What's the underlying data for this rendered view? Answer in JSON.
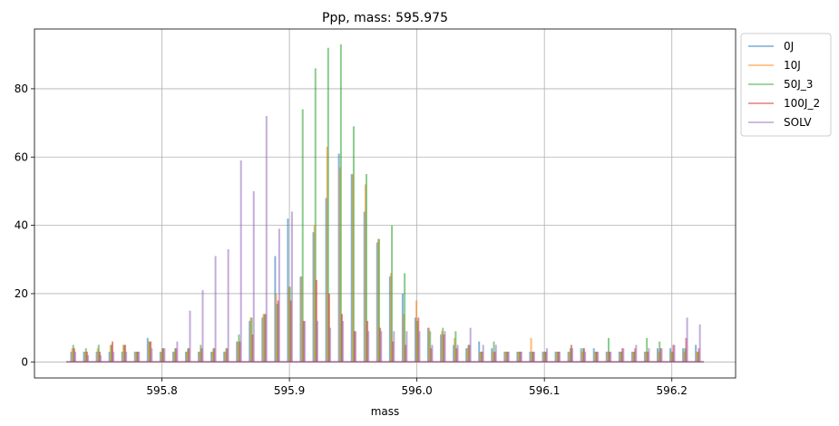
{
  "chart_data": {
    "type": "line",
    "title": "Ppp, mass: 595.975",
    "xlabel": "mass",
    "ylabel": "",
    "xlim": [
      595.7,
      596.25
    ],
    "ylim": [
      -4.7,
      97.5
    ],
    "xticks": [
      595.8,
      595.9,
      596.0,
      596.1,
      596.2
    ],
    "xtick_labels": [
      "595.8",
      "595.9",
      "596.0",
      "596.1",
      "596.2"
    ],
    "yticks": [
      0,
      20,
      40,
      60,
      80
    ],
    "ytick_labels": [
      "0",
      "20",
      "40",
      "60",
      "80"
    ],
    "grid": true,
    "legend_position": "outside-top-right",
    "baseline_range": [
      595.725,
      596.225
    ],
    "peak_positions": [
      595.73,
      595.74,
      595.75,
      595.76,
      595.77,
      595.78,
      595.79,
      595.8,
      595.81,
      595.82,
      595.83,
      595.84,
      595.85,
      595.86,
      595.87,
      595.88,
      595.89,
      595.9,
      595.91,
      595.92,
      595.93,
      595.94,
      595.95,
      595.96,
      595.97,
      595.98,
      595.99,
      596.0,
      596.01,
      596.02,
      596.03,
      596.04,
      596.05,
      596.06,
      596.07,
      596.08,
      596.09,
      596.1,
      596.11,
      596.12,
      596.13,
      596.14,
      596.15,
      596.16,
      596.17,
      596.18,
      596.19,
      596.2,
      596.21,
      596.22
    ],
    "series": [
      {
        "name": "0J",
        "color": "#1f77b4",
        "offset": -0.0012,
        "values": [
          3,
          3,
          3,
          3,
          3,
          3,
          7,
          3,
          3,
          3,
          3,
          3,
          3,
          6,
          12,
          13,
          31,
          42,
          25,
          38,
          48,
          61,
          55,
          44,
          35,
          25,
          20,
          13,
          10,
          8,
          5,
          4,
          6,
          4,
          3,
          3,
          3,
          3,
          3,
          3,
          4,
          4,
          3,
          3,
          3,
          3,
          4,
          4,
          4,
          5
        ]
      },
      {
        "name": "10J",
        "color": "#ff7f0e",
        "offset": -0.0004,
        "values": [
          4,
          3,
          4,
          5,
          5,
          3,
          6,
          3,
          3,
          3,
          3,
          3,
          3,
          6,
          13,
          14,
          20,
          22,
          25,
          40,
          63,
          57,
          55,
          52,
          36,
          26,
          14,
          18,
          10,
          9,
          7,
          4,
          3,
          3,
          3,
          3,
          7,
          3,
          3,
          3,
          3,
          3,
          3,
          3,
          3,
          3,
          3,
          3,
          3,
          3
        ]
      },
      {
        "name": "50J_3",
        "color": "#2ca02c",
        "offset": 0.0004,
        "values": [
          5,
          4,
          5,
          5,
          5,
          3,
          6,
          4,
          4,
          4,
          5,
          4,
          4,
          8,
          13,
          14,
          17,
          22,
          74,
          86,
          92,
          93,
          69,
          55,
          36,
          40,
          26,
          12,
          9,
          10,
          9,
          5,
          3,
          6,
          3,
          3,
          3,
          3,
          3,
          4,
          4,
          3,
          7,
          3,
          3,
          7,
          6,
          3,
          4,
          3
        ]
      },
      {
        "name": "100J_2",
        "color": "#d62728",
        "offset": 0.0012,
        "values": [
          4,
          3,
          3,
          6,
          5,
          3,
          6,
          4,
          4,
          4,
          4,
          4,
          4,
          6,
          8,
          14,
          18,
          18,
          12,
          24,
          20,
          14,
          9,
          12,
          10,
          6,
          5,
          13,
          4,
          8,
          4,
          5,
          3,
          3,
          3,
          3,
          3,
          3,
          3,
          5,
          4,
          3,
          3,
          4,
          4,
          3,
          4,
          5,
          7,
          4
        ]
      },
      {
        "name": "SOLV",
        "color": "#9467bd",
        "offset": 0.002,
        "values": [
          3,
          2,
          2,
          3,
          3,
          3,
          4,
          4,
          6,
          15,
          21,
          31,
          33,
          59,
          50,
          72,
          39,
          44,
          12,
          12,
          10,
          12,
          9,
          9,
          9,
          9,
          9,
          9,
          5,
          9,
          5,
          10,
          5,
          5,
          3,
          3,
          3,
          4,
          3,
          4,
          3,
          3,
          3,
          4,
          5,
          4,
          4,
          5,
          13,
          11
        ]
      }
    ]
  }
}
